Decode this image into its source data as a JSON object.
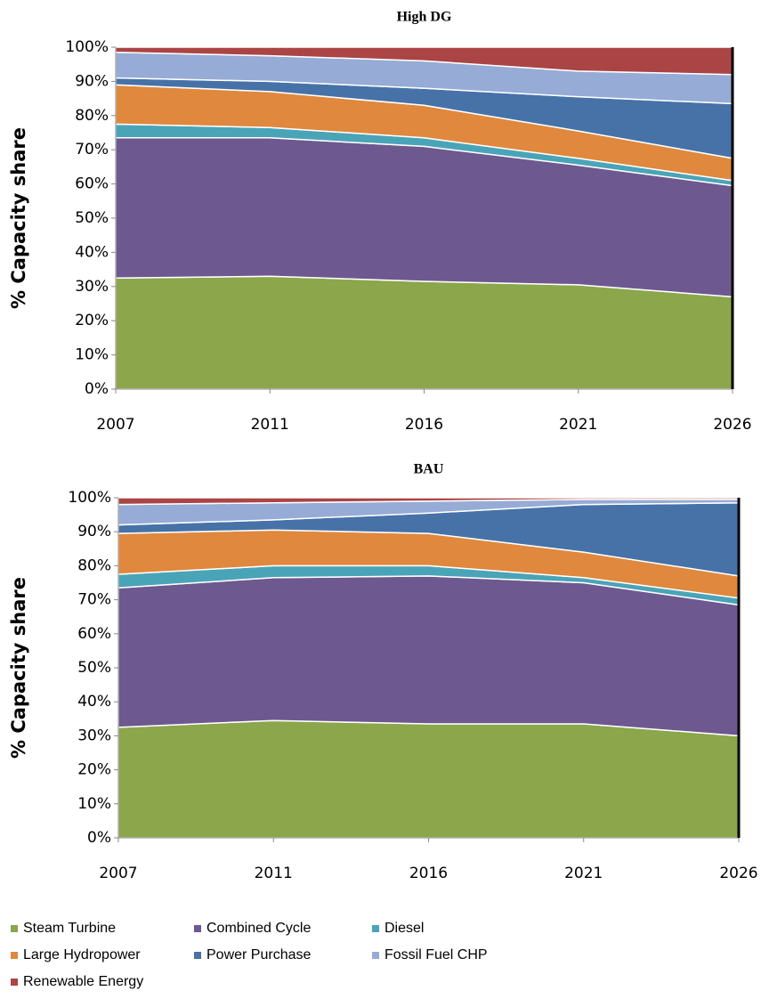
{
  "chart_data": [
    {
      "type": "area",
      "stacked": true,
      "title": "High DG",
      "y_label": "% Capacity share",
      "categories": [
        "2007",
        "2011",
        "2016",
        "2021",
        "2026"
      ],
      "ylim": [
        0,
        100
      ],
      "yticks": [
        {
          "value": 0,
          "label": "0%"
        },
        {
          "value": 10,
          "label": "10%"
        },
        {
          "value": 20,
          "label": "20%"
        },
        {
          "value": 30,
          "label": "30%"
        },
        {
          "value": 40,
          "label": "40%"
        },
        {
          "value": 50,
          "label": "50%"
        },
        {
          "value": 60,
          "label": "60%"
        },
        {
          "value": 70,
          "label": "70%"
        },
        {
          "value": 80,
          "label": "80%"
        },
        {
          "value": 90,
          "label": "90%"
        },
        {
          "value": 100,
          "label": "100%"
        }
      ],
      "series": [
        {
          "name": "Steam Turbine",
          "color": "#8ba64b",
          "values": [
            32.5,
            33,
            31.5,
            30.5,
            27
          ]
        },
        {
          "name": "Combined Cycle",
          "color": "#6e5890",
          "values": [
            41,
            40.5,
            39.5,
            35,
            32.5
          ]
        },
        {
          "name": "Diesel",
          "color": "#4aa4b8",
          "values": [
            4,
            3,
            2.5,
            2,
            1.5
          ]
        },
        {
          "name": "Large Hydropower",
          "color": "#e0883d",
          "values": [
            11.5,
            10.5,
            9.5,
            8,
            6.5
          ]
        },
        {
          "name": "Power Purchase",
          "color": "#4672a8",
          "values": [
            2,
            3,
            5,
            10,
            16
          ]
        },
        {
          "name": "Fossil Fuel CHP",
          "color": "#96abd5",
          "values": [
            7.5,
            7.5,
            8,
            7.5,
            8.5
          ]
        },
        {
          "name": "Renewable Energy",
          "color": "#ab4444",
          "values": [
            1.5,
            2.5,
            4,
            7,
            8
          ]
        }
      ]
    },
    {
      "type": "area",
      "stacked": true,
      "title": "BAU",
      "y_label": "% Capacity share",
      "categories": [
        "2007",
        "2011",
        "2016",
        "2021",
        "2026"
      ],
      "ylim": [
        0,
        100
      ],
      "yticks": [
        {
          "value": 0,
          "label": "0%"
        },
        {
          "value": 10,
          "label": "10%"
        },
        {
          "value": 20,
          "label": "20%"
        },
        {
          "value": 30,
          "label": "30%"
        },
        {
          "value": 40,
          "label": "40%"
        },
        {
          "value": 50,
          "label": "50%"
        },
        {
          "value": 60,
          "label": "60%"
        },
        {
          "value": 70,
          "label": "70%"
        },
        {
          "value": 80,
          "label": "80%"
        },
        {
          "value": 90,
          "label": "90%"
        },
        {
          "value": 100,
          "label": "100%"
        }
      ],
      "series": [
        {
          "name": "Steam Turbine",
          "color": "#8ba64b",
          "values": [
            32.5,
            34.5,
            33.5,
            33.5,
            30
          ]
        },
        {
          "name": "Combined Cycle",
          "color": "#6e5890",
          "values": [
            41,
            42,
            43.5,
            41.5,
            38.5
          ]
        },
        {
          "name": "Diesel",
          "color": "#4aa4b8",
          "values": [
            4,
            3.5,
            3,
            1.5,
            2
          ]
        },
        {
          "name": "Large Hydropower",
          "color": "#e0883d",
          "values": [
            12,
            10.5,
            9.5,
            7.5,
            6.5
          ]
        },
        {
          "name": "Power Purchase",
          "color": "#4672a8",
          "values": [
            2.5,
            3,
            6,
            14,
            21.5
          ]
        },
        {
          "name": "Fossil Fuel CHP",
          "color": "#96abd5",
          "values": [
            6,
            5,
            3.5,
            1.5,
            1
          ]
        },
        {
          "name": "Renewable Energy",
          "color": "#ab4444",
          "values": [
            2,
            1.5,
            1,
            0.5,
            0.5
          ]
        }
      ]
    }
  ]
}
